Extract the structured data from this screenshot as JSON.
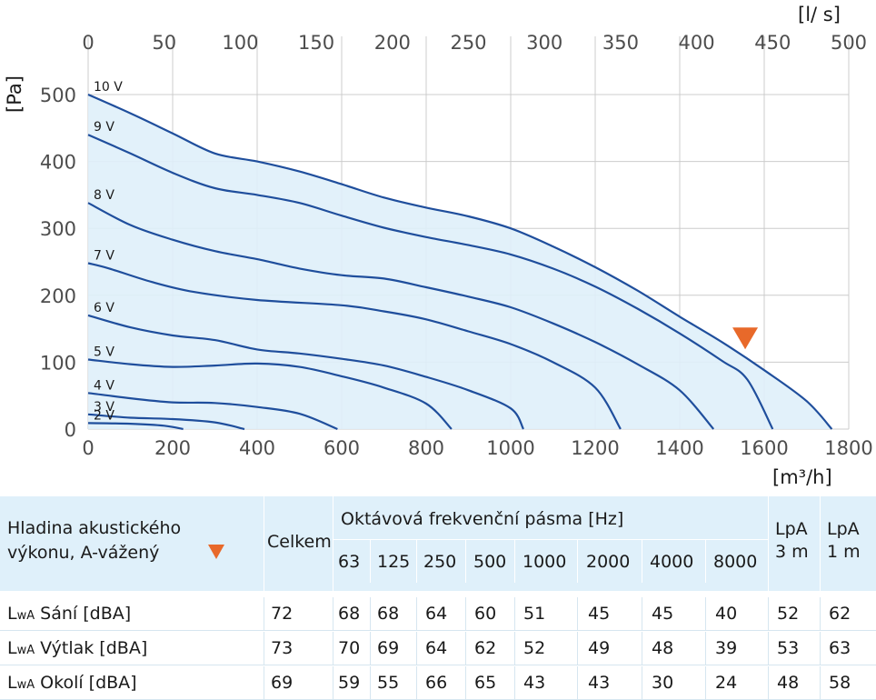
{
  "chart_data": {
    "type": "line",
    "x_unit": "[m³/h]",
    "x2_unit": "[l/ s]",
    "y_unit": "[Pa]",
    "xlim": [
      0,
      1800
    ],
    "ylim": [
      0,
      540
    ],
    "x_ticks": [
      0,
      200,
      400,
      600,
      800,
      1000,
      1200,
      1400,
      1600,
      1800
    ],
    "x2_ticks": [
      0,
      50,
      100,
      150,
      200,
      250,
      300,
      350,
      400,
      450,
      500
    ],
    "y_ticks": [
      0,
      100,
      200,
      300,
      400,
      500
    ],
    "grid": true,
    "fill_color": "#dff0fa",
    "line_color": "#1f4e9c",
    "marker_color": "#e8692a",
    "series": [
      {
        "name": "10 V",
        "points": [
          [
            0,
            500
          ],
          [
            100,
            472
          ],
          [
            200,
            442
          ],
          [
            300,
            412
          ],
          [
            400,
            400
          ],
          [
            500,
            385
          ],
          [
            600,
            366
          ],
          [
            700,
            346
          ],
          [
            800,
            331
          ],
          [
            900,
            318
          ],
          [
            1000,
            300
          ],
          [
            1100,
            273
          ],
          [
            1200,
            242
          ],
          [
            1300,
            207
          ],
          [
            1400,
            168
          ],
          [
            1500,
            130
          ],
          [
            1600,
            88
          ],
          [
            1700,
            42
          ],
          [
            1760,
            0
          ]
        ]
      },
      {
        "name": "9 V",
        "points": [
          [
            0,
            440
          ],
          [
            100,
            412
          ],
          [
            200,
            383
          ],
          [
            300,
            360
          ],
          [
            400,
            350
          ],
          [
            500,
            338
          ],
          [
            600,
            319
          ],
          [
            700,
            301
          ],
          [
            800,
            287
          ],
          [
            900,
            275
          ],
          [
            1000,
            261
          ],
          [
            1100,
            240
          ],
          [
            1200,
            213
          ],
          [
            1300,
            180
          ],
          [
            1400,
            143
          ],
          [
            1500,
            102
          ],
          [
            1560,
            74
          ],
          [
            1620,
            0
          ]
        ]
      },
      {
        "name": "8 V",
        "points": [
          [
            0,
            338
          ],
          [
            100,
            305
          ],
          [
            200,
            283
          ],
          [
            300,
            266
          ],
          [
            400,
            254
          ],
          [
            500,
            240
          ],
          [
            600,
            230
          ],
          [
            700,
            225
          ],
          [
            800,
            212
          ],
          [
            900,
            198
          ],
          [
            1000,
            182
          ],
          [
            1100,
            158
          ],
          [
            1200,
            130
          ],
          [
            1300,
            97
          ],
          [
            1400,
            58
          ],
          [
            1480,
            0
          ]
        ]
      },
      {
        "name": "7 V",
        "points": [
          [
            0,
            248
          ],
          [
            50,
            240
          ],
          [
            150,
            220
          ],
          [
            250,
            205
          ],
          [
            400,
            193
          ],
          [
            600,
            185
          ],
          [
            700,
            176
          ],
          [
            800,
            164
          ],
          [
            900,
            146
          ],
          [
            1000,
            127
          ],
          [
            1100,
            100
          ],
          [
            1200,
            62
          ],
          [
            1260,
            0
          ]
        ]
      },
      {
        "name": "6 V",
        "points": [
          [
            0,
            170
          ],
          [
            100,
            152
          ],
          [
            200,
            140
          ],
          [
            300,
            133
          ],
          [
            400,
            119
          ],
          [
            500,
            113
          ],
          [
            600,
            105
          ],
          [
            700,
            95
          ],
          [
            800,
            78
          ],
          [
            900,
            58
          ],
          [
            1000,
            31
          ],
          [
            1030,
            0
          ]
        ]
      },
      {
        "name": "5 V",
        "points": [
          [
            0,
            104
          ],
          [
            100,
            97
          ],
          [
            200,
            93
          ],
          [
            300,
            95
          ],
          [
            400,
            98
          ],
          [
            500,
            93
          ],
          [
            600,
            79
          ],
          [
            700,
            62
          ],
          [
            800,
            38
          ],
          [
            860,
            0
          ]
        ]
      },
      {
        "name": "4 V",
        "points": [
          [
            0,
            54
          ],
          [
            100,
            46
          ],
          [
            200,
            40
          ],
          [
            300,
            39
          ],
          [
            400,
            33
          ],
          [
            500,
            23
          ],
          [
            590,
            0
          ]
        ]
      },
      {
        "name": "3 V",
        "points": [
          [
            0,
            22
          ],
          [
            100,
            17
          ],
          [
            200,
            15
          ],
          [
            300,
            10
          ],
          [
            370,
            0
          ]
        ]
      },
      {
        "name": "2 V",
        "points": [
          [
            0,
            9
          ],
          [
            100,
            8
          ],
          [
            180,
            5
          ],
          [
            225,
            0
          ]
        ]
      }
    ],
    "marker": {
      "x": 1555,
      "y": 122
    }
  },
  "table": {
    "header_label_line1": "Hladina akustického",
    "header_label_line2": "výkonu, A-vážený",
    "total_header": "Celkem",
    "octave_header": "Oktávová frekvenční pásma [Hz]",
    "frequencies": [
      "63",
      "125",
      "250",
      "500",
      "1000",
      "2000",
      "4000",
      "8000"
    ],
    "lpa3_line1": "LpA",
    "lpa3_line2": "3 m",
    "lpa1_line1": "LpA",
    "lpa1_line2": "1 m",
    "rows": [
      {
        "label_prefix": "L",
        "label_sub": "wA",
        "label_rest": " Sání [dBA]",
        "values": [
          "72",
          "68",
          "68",
          "64",
          "60",
          "51",
          "45",
          "45",
          "40",
          "52",
          "62"
        ]
      },
      {
        "label_prefix": "L",
        "label_sub": "wA",
        "label_rest": " Výtlak [dBA]",
        "values": [
          "73",
          "70",
          "69",
          "64",
          "62",
          "52",
          "49",
          "48",
          "39",
          "53",
          "63"
        ]
      },
      {
        "label_prefix": "L",
        "label_sub": "wA",
        "label_rest": " Okolí [dBA]",
        "values": [
          "69",
          "59",
          "55",
          "66",
          "65",
          "43",
          "43",
          "30",
          "24",
          "48",
          "58"
        ]
      }
    ]
  }
}
